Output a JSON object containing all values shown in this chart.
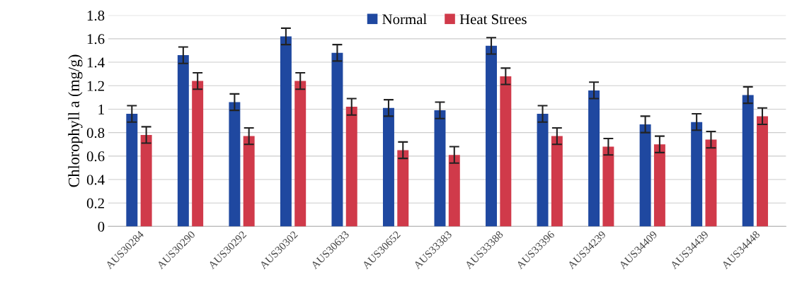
{
  "chart_data": {
    "type": "bar",
    "ylabel": "Chlorophyll a (mg/g)",
    "categories": [
      "AUS30284",
      "AUS30290",
      "AUS30292",
      "AUS30302",
      "AUS30633",
      "AUS30652",
      "AUS33383",
      "AUS33388",
      "AUS33396",
      "AUS34239",
      "AUS34409",
      "AUS34439",
      "AUS34448"
    ],
    "series": [
      {
        "name": "Normal",
        "color": "#1f48a0",
        "values": [
          0.96,
          1.46,
          1.06,
          1.62,
          1.48,
          1.01,
          0.99,
          1.54,
          0.96,
          1.16,
          0.87,
          0.89,
          1.12
        ],
        "errors": [
          0.07,
          0.07,
          0.07,
          0.07,
          0.07,
          0.07,
          0.07,
          0.07,
          0.07,
          0.07,
          0.07,
          0.07,
          0.07
        ]
      },
      {
        "name": "Heat Strees",
        "color": "#d03a4a",
        "values": [
          0.78,
          1.24,
          0.77,
          1.24,
          1.02,
          0.65,
          0.61,
          1.28,
          0.77,
          0.68,
          0.7,
          0.74,
          0.94
        ],
        "errors": [
          0.07,
          0.07,
          0.07,
          0.07,
          0.07,
          0.07,
          0.07,
          0.07,
          0.07,
          0.07,
          0.07,
          0.07,
          0.07
        ]
      }
    ],
    "ylim": [
      0,
      1.8
    ],
    "yticks": [
      0,
      0.2,
      0.4,
      0.6,
      0.8,
      1,
      1.2,
      1.4,
      1.6,
      1.8
    ],
    "grid": "y",
    "legend": "top"
  }
}
